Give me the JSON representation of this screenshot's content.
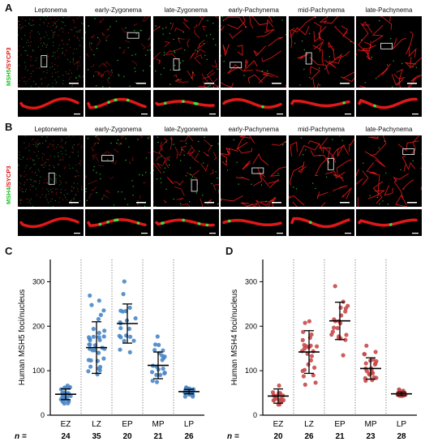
{
  "panels": {
    "A": {
      "letter": "A",
      "label_green": "MSH5",
      "label_red": "/SYCP3"
    },
    "B": {
      "letter": "B",
      "label_green": "MSH4",
      "label_red": "/SYCP3"
    },
    "C": {
      "letter": "C"
    },
    "D": {
      "letter": "D"
    }
  },
  "stages": [
    "Leptonema",
    "early-Zygonema",
    "late-Zygonema",
    "early-Pachynema",
    "mid-Pachynema",
    "late-Pachynema"
  ],
  "colors": {
    "dot_C": "#4a87c8",
    "dot_D": "#c84a4a",
    "sycp3": "#e01818",
    "msh": "#3be03b"
  },
  "chart_data": [
    {
      "type": "scatter",
      "panel": "C",
      "ylabel": "Human MSH5 foci/nucleus",
      "ylim": [
        0,
        350
      ],
      "yticks": [
        0,
        100,
        200,
        300
      ],
      "categories": [
        "EZ",
        "LZ",
        "EP",
        "MP",
        "LP"
      ],
      "n_label": "n =",
      "n": [
        24,
        35,
        20,
        21,
        26
      ],
      "mean": [
        47,
        152,
        206,
        112,
        53
      ],
      "sd": [
        12,
        58,
        44,
        30,
        5
      ]
    },
    {
      "type": "scatter",
      "panel": "D",
      "ylabel": "Human MSH4 foci/nucleus",
      "ylim": [
        0,
        350
      ],
      "yticks": [
        0,
        100,
        200,
        300
      ],
      "categories": [
        "EZ",
        "LZ",
        "EP",
        "MP",
        "LP"
      ],
      "n_label": "n =",
      "n": [
        20,
        26,
        21,
        23,
        28
      ],
      "mean": [
        43,
        142,
        212,
        105,
        48
      ],
      "sd": [
        16,
        48,
        42,
        24,
        4
      ]
    }
  ]
}
